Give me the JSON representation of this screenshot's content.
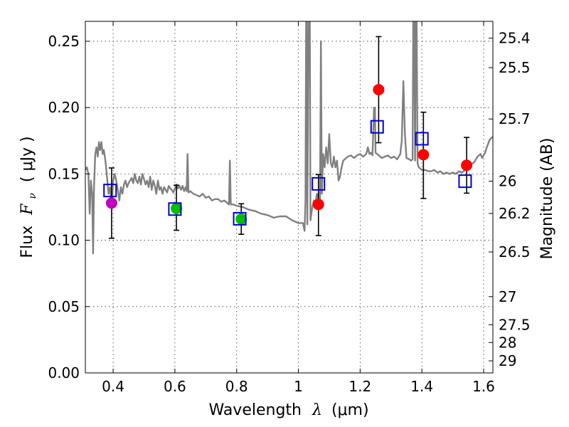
{
  "chart_data": {
    "type": "scatter",
    "xlabel_prefix": "Wavelength",
    "xlabel_symbol": "λ",
    "xlabel_unit": "(μm)",
    "ylabel_prefix": "Flux",
    "ylabel_symbol": "F",
    "ylabel_sub": "ν",
    "ylabel_unit": "( μJy )",
    "y2label": "Magnitude (AB)",
    "xlim": [
      0.31,
      1.63
    ],
    "ylim": [
      0.0,
      0.265
    ],
    "grid": true,
    "x_ticks": [
      {
        "value": 0.4,
        "label": "0.4"
      },
      {
        "value": 0.6,
        "label": "0.6"
      },
      {
        "value": 0.8,
        "label": "0.8"
      },
      {
        "value": 1.0,
        "label": "1"
      },
      {
        "value": 1.2,
        "label": "1.2"
      },
      {
        "value": 1.4,
        "label": "1.4"
      },
      {
        "value": 1.6,
        "label": "1.6"
      }
    ],
    "y_ticks": [
      {
        "value": 0.0,
        "label": "0.00"
      },
      {
        "value": 0.05,
        "label": "0.05"
      },
      {
        "value": 0.1,
        "label": "0.10"
      },
      {
        "value": 0.15,
        "label": "0.15"
      },
      {
        "value": 0.2,
        "label": "0.20"
      },
      {
        "value": 0.25,
        "label": "0.25"
      }
    ],
    "mag_ticks": [
      {
        "flux": 0.2523,
        "label": "25.4"
      },
      {
        "flux": 0.2301,
        "label": "25.5"
      },
      {
        "flux": 0.1914,
        "label": "25.7"
      },
      {
        "flux": 0.1445,
        "label": "26"
      },
      {
        "flux": 0.1202,
        "label": "26.2"
      },
      {
        "flux": 0.0912,
        "label": "26.5"
      },
      {
        "flux": 0.0575,
        "label": "27"
      },
      {
        "flux": 0.0363,
        "label": "27.5"
      },
      {
        "flux": 0.0229,
        "label": "28"
      },
      {
        "flux": 0.0091,
        "label": "29"
      }
    ],
    "colors": {
      "spectrum": "#808080",
      "model": "#0000cc",
      "magenta": "#bf00bf",
      "green": "#00bf00",
      "red": "#ff0000",
      "errorbar": "#000000"
    },
    "observed": [
      {
        "x": 0.395,
        "y": 0.128,
        "err_low": 0.1015,
        "err_high": 0.1545,
        "color": "magenta"
      },
      {
        "x": 0.605,
        "y": 0.124,
        "err_low": 0.1075,
        "err_high": 0.1415,
        "color": "green"
      },
      {
        "x": 0.815,
        "y": 0.116,
        "err_low": 0.1045,
        "err_high": 0.1275,
        "color": "green"
      },
      {
        "x": 1.065,
        "y": 0.127,
        "err_low": 0.1035,
        "err_high": 0.1495,
        "color": "red"
      },
      {
        "x": 1.26,
        "y": 0.2135,
        "err_low": 0.1735,
        "err_high": 0.2535,
        "color": "red"
      },
      {
        "x": 1.405,
        "y": 0.1645,
        "err_low": 0.1315,
        "err_high": 0.1965,
        "color": "red"
      },
      {
        "x": 1.545,
        "y": 0.1565,
        "err_low": 0.1355,
        "err_high": 0.1775,
        "color": "red"
      }
    ],
    "model_points": [
      {
        "x": 0.39,
        "y": 0.1375
      },
      {
        "x": 0.6,
        "y": 0.1235
      },
      {
        "x": 0.81,
        "y": 0.1162
      },
      {
        "x": 1.065,
        "y": 0.1425
      },
      {
        "x": 1.255,
        "y": 0.1855
      },
      {
        "x": 1.4,
        "y": 0.1765
      },
      {
        "x": 1.54,
        "y": 0.1445
      }
    ],
    "spectrum": [
      [
        0.31,
        0.153
      ],
      [
        0.315,
        0.155
      ],
      [
        0.32,
        0.15
      ],
      [
        0.324,
        0.12
      ],
      [
        0.328,
        0.145
      ],
      [
        0.332,
        0.135
      ],
      [
        0.335,
        0.09
      ],
      [
        0.338,
        0.14
      ],
      [
        0.342,
        0.165
      ],
      [
        0.346,
        0.17
      ],
      [
        0.35,
        0.163
      ],
      [
        0.354,
        0.174
      ],
      [
        0.358,
        0.168
      ],
      [
        0.362,
        0.174
      ],
      [
        0.366,
        0.165
      ],
      [
        0.37,
        0.168
      ],
      [
        0.375,
        0.16
      ],
      [
        0.38,
        0.148
      ],
      [
        0.385,
        0.135
      ],
      [
        0.39,
        0.14
      ],
      [
        0.395,
        0.125
      ],
      [
        0.4,
        0.145
      ],
      [
        0.405,
        0.15
      ],
      [
        0.41,
        0.145
      ],
      [
        0.415,
        0.138
      ],
      [
        0.42,
        0.13
      ],
      [
        0.425,
        0.14
      ],
      [
        0.43,
        0.135
      ],
      [
        0.435,
        0.142
      ],
      [
        0.44,
        0.145
      ],
      [
        0.445,
        0.14
      ],
      [
        0.45,
        0.143
      ],
      [
        0.455,
        0.145
      ],
      [
        0.46,
        0.147
      ],
      [
        0.465,
        0.143
      ],
      [
        0.47,
        0.15
      ],
      [
        0.475,
        0.145
      ],
      [
        0.48,
        0.143
      ],
      [
        0.485,
        0.148
      ],
      [
        0.49,
        0.142
      ],
      [
        0.495,
        0.15
      ],
      [
        0.5,
        0.146
      ],
      [
        0.505,
        0.142
      ],
      [
        0.51,
        0.145
      ],
      [
        0.515,
        0.14
      ],
      [
        0.52,
        0.148
      ],
      [
        0.525,
        0.138
      ],
      [
        0.53,
        0.145
      ],
      [
        0.535,
        0.141
      ],
      [
        0.54,
        0.135
      ],
      [
        0.545,
        0.145
      ],
      [
        0.55,
        0.138
      ],
      [
        0.555,
        0.14
      ],
      [
        0.56,
        0.135
      ],
      [
        0.565,
        0.14
      ],
      [
        0.57,
        0.138
      ],
      [
        0.575,
        0.136
      ],
      [
        0.58,
        0.141
      ],
      [
        0.585,
        0.139
      ],
      [
        0.59,
        0.138
      ],
      [
        0.595,
        0.136
      ],
      [
        0.6,
        0.139
      ],
      [
        0.605,
        0.142
      ],
      [
        0.61,
        0.139
      ],
      [
        0.615,
        0.141
      ],
      [
        0.62,
        0.138
      ],
      [
        0.625,
        0.141
      ],
      [
        0.63,
        0.137
      ],
      [
        0.635,
        0.14
      ],
      [
        0.638,
        0.137
      ],
      [
        0.641,
        0.165
      ],
      [
        0.644,
        0.136
      ],
      [
        0.65,
        0.137
      ],
      [
        0.66,
        0.135
      ],
      [
        0.67,
        0.134
      ],
      [
        0.68,
        0.133
      ],
      [
        0.69,
        0.135
      ],
      [
        0.7,
        0.132
      ],
      [
        0.71,
        0.133
      ],
      [
        0.72,
        0.13
      ],
      [
        0.73,
        0.131
      ],
      [
        0.74,
        0.131
      ],
      [
        0.75,
        0.129
      ],
      [
        0.76,
        0.13
      ],
      [
        0.77,
        0.128
      ],
      [
        0.775,
        0.127
      ],
      [
        0.778,
        0.16
      ],
      [
        0.781,
        0.127
      ],
      [
        0.79,
        0.127
      ],
      [
        0.8,
        0.126
      ],
      [
        0.82,
        0.125
      ],
      [
        0.84,
        0.123
      ],
      [
        0.86,
        0.122
      ],
      [
        0.88,
        0.12
      ],
      [
        0.9,
        0.119
      ],
      [
        0.92,
        0.117
      ],
      [
        0.94,
        0.118
      ],
      [
        0.96,
        0.118
      ],
      [
        0.98,
        0.115
      ],
      [
        1.0,
        0.113
      ],
      [
        1.015,
        0.113
      ],
      [
        1.02,
        0.107
      ],
      [
        1.023,
        0.13
      ],
      [
        1.025,
        0.265
      ],
      [
        1.027,
        0.265
      ],
      [
        1.029,
        0.112
      ],
      [
        1.033,
        0.265
      ],
      [
        1.037,
        0.265
      ],
      [
        1.039,
        0.115
      ],
      [
        1.045,
        0.125
      ],
      [
        1.05,
        0.13
      ],
      [
        1.055,
        0.128
      ],
      [
        1.06,
        0.135
      ],
      [
        1.065,
        0.13
      ],
      [
        1.07,
        0.128
      ],
      [
        1.073,
        0.25
      ],
      [
        1.076,
        0.135
      ],
      [
        1.08,
        0.165
      ],
      [
        1.085,
        0.155
      ],
      [
        1.09,
        0.17
      ],
      [
        1.095,
        0.158
      ],
      [
        1.1,
        0.18
      ],
      [
        1.105,
        0.158
      ],
      [
        1.11,
        0.155
      ],
      [
        1.115,
        0.163
      ],
      [
        1.12,
        0.155
      ],
      [
        1.125,
        0.16
      ],
      [
        1.13,
        0.145
      ],
      [
        1.135,
        0.148
      ],
      [
        1.14,
        0.155
      ],
      [
        1.145,
        0.16
      ],
      [
        1.15,
        0.161
      ],
      [
        1.16,
        0.163
      ],
      [
        1.17,
        0.164
      ],
      [
        1.18,
        0.162
      ],
      [
        1.19,
        0.164
      ],
      [
        1.2,
        0.165
      ],
      [
        1.21,
        0.163
      ],
      [
        1.22,
        0.165
      ],
      [
        1.225,
        0.17
      ],
      [
        1.23,
        0.165
      ],
      [
        1.235,
        0.166
      ],
      [
        1.24,
        0.164
      ],
      [
        1.245,
        0.2
      ],
      [
        1.248,
        0.2
      ],
      [
        1.25,
        0.166
      ],
      [
        1.255,
        0.165
      ],
      [
        1.26,
        0.164
      ],
      [
        1.265,
        0.163
      ],
      [
        1.27,
        0.162
      ],
      [
        1.28,
        0.163
      ],
      [
        1.29,
        0.164
      ],
      [
        1.3,
        0.162
      ],
      [
        1.31,
        0.163
      ],
      [
        1.32,
        0.161
      ],
      [
        1.33,
        0.165
      ],
      [
        1.335,
        0.175
      ],
      [
        1.34,
        0.22
      ],
      [
        1.345,
        0.18
      ],
      [
        1.35,
        0.162
      ],
      [
        1.36,
        0.161
      ],
      [
        1.365,
        0.16
      ],
      [
        1.37,
        0.161
      ],
      [
        1.372,
        0.265
      ],
      [
        1.375,
        0.265
      ],
      [
        1.378,
        0.16
      ],
      [
        1.38,
        0.265
      ],
      [
        1.383,
        0.265
      ],
      [
        1.386,
        0.158
      ],
      [
        1.39,
        0.155
      ],
      [
        1.4,
        0.153
      ],
      [
        1.41,
        0.153
      ],
      [
        1.42,
        0.152
      ],
      [
        1.43,
        0.152
      ],
      [
        1.44,
        0.153
      ],
      [
        1.45,
        0.151
      ],
      [
        1.46,
        0.152
      ],
      [
        1.47,
        0.15
      ],
      [
        1.48,
        0.151
      ],
      [
        1.49,
        0.15
      ],
      [
        1.5,
        0.151
      ],
      [
        1.51,
        0.15
      ],
      [
        1.52,
        0.152
      ],
      [
        1.53,
        0.151
      ],
      [
        1.54,
        0.153
      ],
      [
        1.55,
        0.155
      ],
      [
        1.56,
        0.157
      ],
      [
        1.57,
        0.159
      ],
      [
        1.58,
        0.163
      ],
      [
        1.59,
        0.165
      ],
      [
        1.595,
        0.162
      ],
      [
        1.6,
        0.164
      ],
      [
        1.605,
        0.166
      ],
      [
        1.61,
        0.17
      ],
      [
        1.615,
        0.173
      ],
      [
        1.62,
        0.176
      ],
      [
        1.63,
        0.178
      ]
    ]
  }
}
